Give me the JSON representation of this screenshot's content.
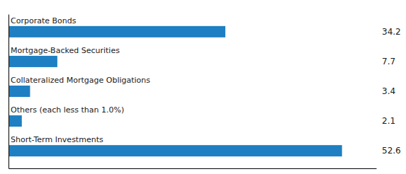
{
  "chart_data": {
    "type": "bar",
    "orientation": "horizontal",
    "categories": [
      "Short-Term Investments",
      "Others (each less than 1.0%)",
      "Collateralized Mortgage Obligations",
      "Mortgage-Backed Securities",
      "Corporate Bonds"
    ],
    "values": [
      52.6,
      2.1,
      3.4,
      7.7,
      34.2
    ],
    "color": "#1e7fc2",
    "xlim": [
      0,
      58
    ],
    "tick_labels": false,
    "data_labels": true
  }
}
